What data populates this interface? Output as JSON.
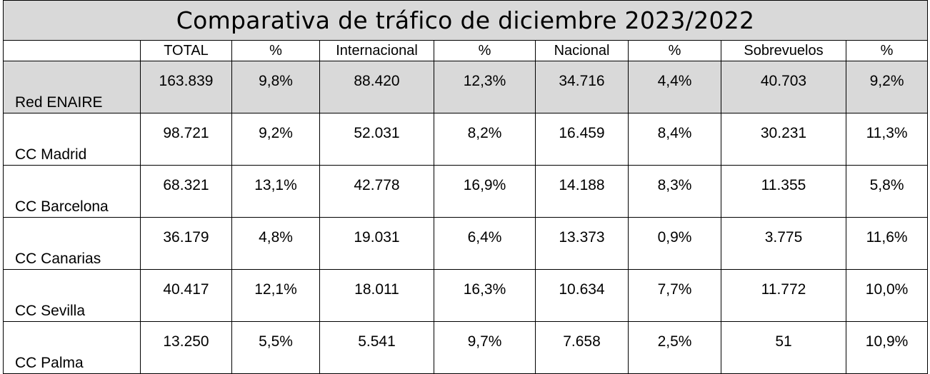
{
  "title": "Comparativa de tráfico de diciembre 2023/2022",
  "columns": [
    "",
    "TOTAL",
    "%",
    "Internacional",
    "%",
    "Nacional",
    "%",
    "Sobrevuelos",
    "%"
  ],
  "rows": [
    {
      "label": "Red ENAIRE",
      "cells": [
        "163.839",
        "9,8%",
        "88.420",
        "12,3%",
        "34.716",
        "4,4%",
        "40.703",
        "9,2%"
      ]
    },
    {
      "label": "CC Madrid",
      "cells": [
        "98.721",
        "9,2%",
        "52.031",
        "8,2%",
        "16.459",
        "8,4%",
        "30.231",
        "11,3%"
      ]
    },
    {
      "label": "CC Barcelona",
      "cells": [
        "68.321",
        "13,1%",
        "42.778",
        "16,9%",
        "14.188",
        "8,3%",
        "11.355",
        "5,8%"
      ]
    },
    {
      "label": "CC Canarias",
      "cells": [
        "36.179",
        "4,8%",
        "19.031",
        "6,4%",
        "13.373",
        "0,9%",
        "3.775",
        "11,6%"
      ]
    },
    {
      "label": "CC Sevilla",
      "cells": [
        "40.417",
        "12,1%",
        "18.011",
        "16,3%",
        "10.634",
        "7,7%",
        "11.772",
        "10,0%"
      ]
    },
    {
      "label": "CC Palma",
      "cells": [
        "13.250",
        "5,5%",
        "5.541",
        "9,7%",
        "7.658",
        "2,5%",
        "51",
        "10,9%"
      ]
    }
  ],
  "colors": {
    "shade": "#d9d9d9",
    "border": "#000000"
  }
}
